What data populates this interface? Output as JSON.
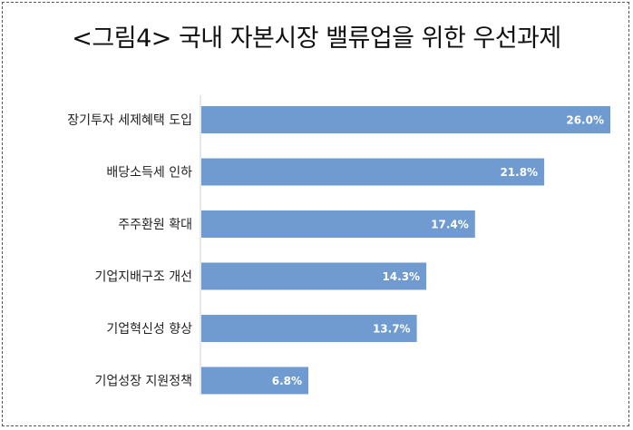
{
  "title": "<그림4> 국내 자본시장 밸류업을 위한 우선과제",
  "colors": {
    "bar": "#6f9bd1",
    "label_inside": "#ffffff",
    "category_text": "#222222"
  },
  "chart_data": {
    "type": "bar",
    "orientation": "horizontal",
    "title": "<그림4> 국내 자본시장 밸류업을 위한 우선과제",
    "categories": [
      "장기투자 세제혜택 도입",
      "배당소득세 인하",
      "주주환원 확대",
      "기업지배구조 개선",
      "기업혁신성 향상",
      "기업성장 지원정책"
    ],
    "values": [
      26.0,
      21.8,
      17.4,
      14.3,
      13.7,
      6.8
    ],
    "data_labels": [
      "26.0%",
      "21.8%",
      "17.4%",
      "14.3%",
      "13.7%",
      "6.8%"
    ],
    "unit": "%",
    "xlim": [
      0,
      26.0
    ],
    "grid": false,
    "legend": "none"
  }
}
